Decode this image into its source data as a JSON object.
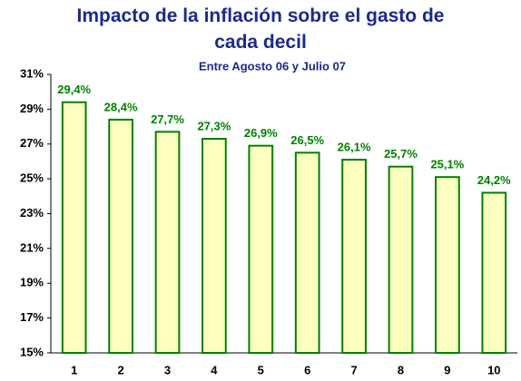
{
  "chart_data": {
    "type": "bar",
    "title": "Impacto de la inflación sobre el gasto de cada decil",
    "subtitle": "Entre Agosto 06 y Julio 07",
    "categories": [
      "1",
      "2",
      "3",
      "4",
      "5",
      "6",
      "7",
      "8",
      "9",
      "10"
    ],
    "values": [
      29.4,
      28.4,
      27.7,
      27.3,
      26.9,
      26.5,
      26.1,
      25.7,
      25.1,
      24.2
    ],
    "value_labels": [
      "29,4%",
      "28,4%",
      "27,7%",
      "27,3%",
      "26,9%",
      "26,5%",
      "26,1%",
      "25,7%",
      "25,1%",
      "24,2%"
    ],
    "color": "#ffffc0",
    "edge_color": "#008000",
    "label_color": "#008000",
    "ylim": [
      15,
      31
    ],
    "yticks": [
      {
        "value": 15,
        "label": "15%"
      },
      {
        "value": 17,
        "label": "17%"
      },
      {
        "value": 19,
        "label": "19%"
      },
      {
        "value": 21,
        "label": "21%"
      },
      {
        "value": 23,
        "label": "23%"
      },
      {
        "value": 25,
        "label": "25%"
      },
      {
        "value": 27,
        "label": "27%"
      },
      {
        "value": 29,
        "label": "29%"
      },
      {
        "value": 31,
        "label": "31%"
      }
    ],
    "grid": false
  }
}
